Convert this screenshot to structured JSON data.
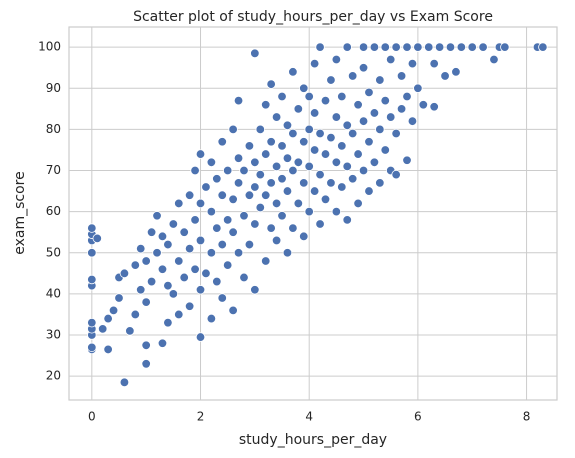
{
  "chart_data": {
    "type": "scatter",
    "title": "Scatter plot of study_hours_per_day vs Exam Score",
    "xlabel": "study_hours_per_day",
    "ylabel": "exam_score",
    "color": "#4c72b0",
    "grid": true,
    "xlim": [
      -0.42,
      8.56
    ],
    "ylim": [
      14.2,
      104.9
    ],
    "xticks": [
      0,
      2,
      4,
      6,
      8
    ],
    "yticks": [
      20,
      30,
      40,
      50,
      60,
      70,
      80,
      90,
      100
    ],
    "x": [
      0,
      0,
      0,
      0,
      0,
      0,
      0,
      0,
      0,
      0,
      0,
      0.1,
      0.2,
      0.3,
      0.3,
      0.4,
      0.5,
      0.5,
      0.6,
      0.6,
      0.7,
      0.8,
      0.8,
      0.9,
      0.9,
      1.0,
      1.0,
      1.0,
      1.0,
      1.1,
      1.1,
      1.2,
      1.2,
      1.3,
      1.3,
      1.3,
      1.4,
      1.4,
      1.4,
      1.5,
      1.5,
      1.6,
      1.6,
      1.6,
      1.7,
      1.7,
      1.8,
      1.8,
      1.8,
      1.9,
      1.9,
      1.9,
      2.0,
      2.0,
      2.0,
      2.0,
      2.0,
      2.1,
      2.1,
      2.2,
      2.2,
      2.2,
      2.2,
      2.3,
      2.3,
      2.3,
      2.4,
      2.4,
      2.4,
      2.4,
      2.5,
      2.5,
      2.5,
      2.6,
      2.6,
      2.6,
      2.6,
      2.7,
      2.7,
      2.7,
      2.7,
      2.8,
      2.8,
      2.8,
      2.9,
      2.9,
      2.9,
      3.0,
      3.0,
      3.0,
      3.0,
      3.0,
      3.1,
      3.1,
      3.1,
      3.2,
      3.2,
      3.2,
      3.2,
      3.3,
      3.3,
      3.3,
      3.3,
      3.4,
      3.4,
      3.4,
      3.4,
      3.5,
      3.5,
      3.5,
      3.5,
      3.6,
      3.6,
      3.6,
      3.6,
      3.7,
      3.7,
      3.7,
      3.7,
      3.8,
      3.8,
      3.8,
      3.9,
      3.9,
      3.9,
      3.9,
      4.0,
      4.0,
      4.0,
      4.0,
      4.1,
      4.1,
      4.1,
      4.1,
      4.2,
      4.2,
      4.2,
      4.2,
      4.3,
      4.3,
      4.3,
      4.4,
      4.4,
      4.4,
      4.5,
      4.5,
      4.5,
      4.5,
      4.6,
      4.6,
      4.6,
      4.7,
      4.7,
      4.7,
      4.7,
      4.8,
      4.8,
      4.8,
      4.9,
      4.9,
      4.9,
      5.0,
      5.0,
      5.0,
      5.0,
      5.1,
      5.1,
      5.1,
      5.2,
      5.2,
      5.2,
      5.3,
      5.3,
      5.3,
      5.4,
      5.4,
      5.4,
      5.5,
      5.5,
      5.5,
      5.6,
      5.6,
      5.6,
      5.7,
      5.7,
      5.8,
      5.8,
      5.8,
      5.9,
      5.9,
      6.0,
      6.0,
      6.1,
      6.2,
      6.3,
      6.3,
      6.4,
      6.5,
      6.6,
      6.7,
      6.8,
      7.0,
      7.2,
      7.4,
      7.5,
      7.6,
      8.2,
      8.3
    ],
    "values": [
      26.5,
      27,
      30,
      31.5,
      33,
      42,
      43.5,
      50,
      53,
      54.5,
      56,
      53.5,
      31.5,
      26.5,
      34,
      36,
      39,
      44,
      18.5,
      45,
      31,
      47,
      35,
      41,
      51,
      23,
      27.5,
      38,
      48,
      43,
      55,
      50,
      59,
      28,
      46,
      54,
      33,
      42,
      52,
      40,
      57,
      35,
      48,
      62,
      44,
      55,
      37,
      51,
      64,
      46,
      58,
      70,
      29.5,
      41,
      53,
      62,
      74,
      45,
      66,
      34,
      50,
      60,
      72,
      43,
      56,
      68,
      39,
      52,
      64,
      77,
      47,
      58,
      70,
      36,
      55,
      63,
      80,
      50,
      67,
      73,
      87,
      44,
      59,
      70,
      52,
      64,
      76,
      41,
      57,
      66,
      72,
      98.5,
      61,
      69,
      80,
      48,
      64,
      74,
      86,
      56,
      67,
      77,
      91,
      53,
      62,
      71,
      83,
      59,
      68,
      76,
      88,
      50,
      65,
      73,
      81,
      56,
      70,
      79,
      94,
      62,
      72,
      85,
      54,
      67,
      77,
      90,
      60,
      71,
      80,
      88,
      65,
      75,
      84,
      96,
      57,
      69,
      79,
      100,
      63,
      74,
      87,
      67,
      78,
      92,
      60,
      72,
      83,
      97,
      66,
      76,
      88,
      58,
      71,
      81,
      100,
      68,
      79,
      93,
      62,
      74,
      86,
      70,
      82,
      95,
      100,
      65,
      77,
      89,
      72,
      84,
      100,
      67,
      80,
      92,
      75,
      87,
      100,
      70,
      83,
      97,
      69,
      79,
      100,
      85,
      93,
      72.5,
      88,
      100,
      82,
      96,
      90,
      100,
      86,
      100,
      85.5,
      96,
      100,
      93,
      100,
      94,
      100,
      100,
      100,
      97,
      100,
      100,
      100,
      100
    ]
  }
}
